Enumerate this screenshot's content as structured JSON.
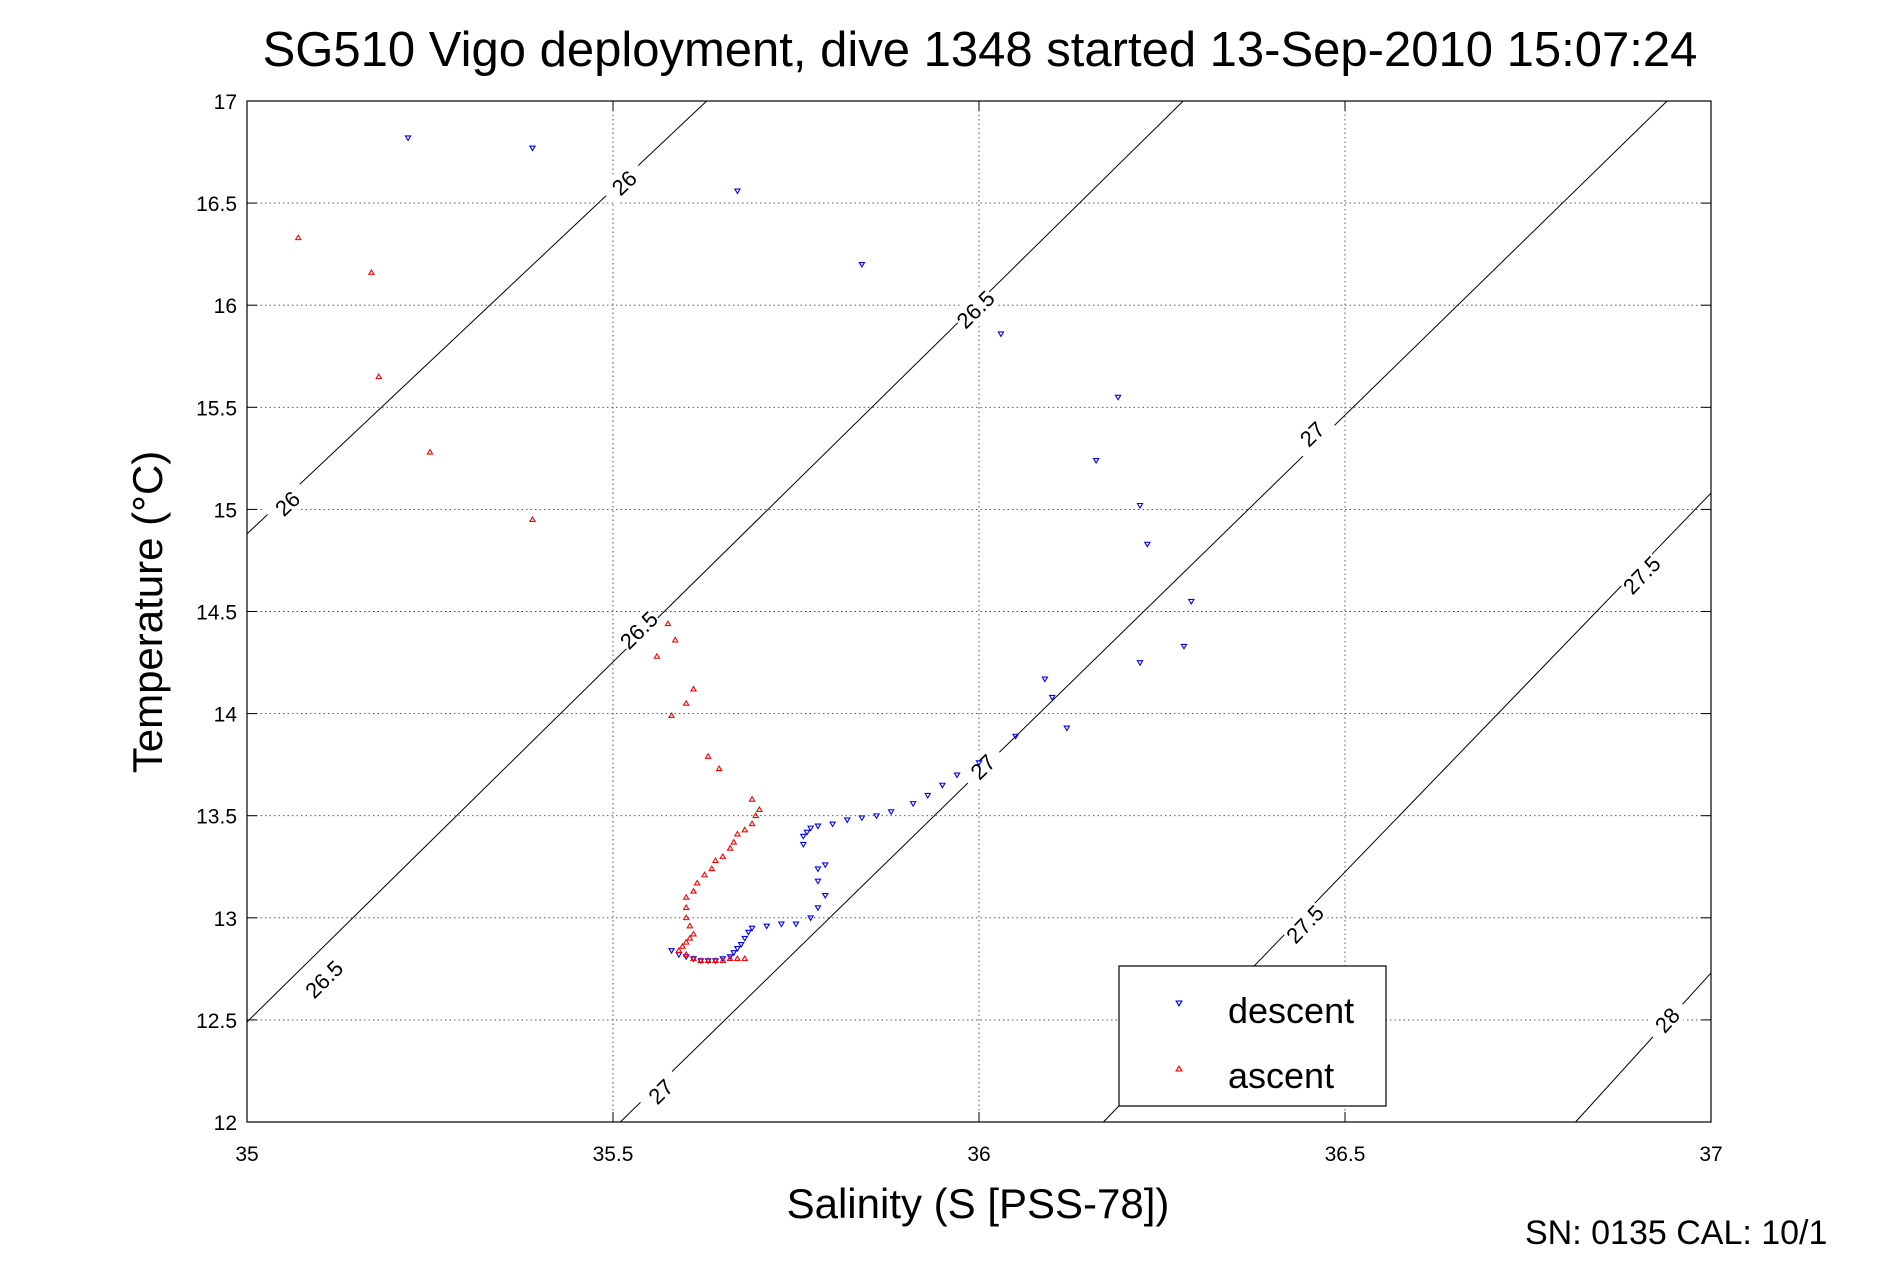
{
  "chart_data": {
    "type": "scatter",
    "title": "SG510 Vigo deployment, dive 1348 started 13-Sep-2010 15:07:24",
    "xlabel": "Salinity (S [PSS-78])",
    "ylabel": "Temperature (°C)",
    "xlim": [
      35,
      37
    ],
    "ylim": [
      12,
      17
    ],
    "xticks": [
      "35",
      "35.5",
      "36",
      "36.5",
      "37"
    ],
    "yticks": [
      "12",
      "12.5",
      "13",
      "13.5",
      "14",
      "14.5",
      "15",
      "15.5",
      "16",
      "16.5",
      "17"
    ],
    "grid": true,
    "legend_position": "bottom-right",
    "footer": "SN: 0135  CAL: 10/1",
    "series": [
      {
        "name": "descent",
        "color": "#0000ff",
        "marker": "triangle-down",
        "points": [
          [
            35.22,
            16.82
          ],
          [
            35.39,
            16.77
          ],
          [
            35.67,
            16.56
          ],
          [
            35.84,
            16.2
          ],
          [
            36.03,
            15.86
          ],
          [
            36.19,
            15.55
          ],
          [
            36.16,
            15.24
          ],
          [
            36.22,
            15.02
          ],
          [
            36.23,
            14.83
          ],
          [
            36.29,
            14.55
          ],
          [
            36.22,
            14.25
          ],
          [
            36.28,
            14.33
          ],
          [
            36.09,
            14.17
          ],
          [
            36.1,
            14.08
          ],
          [
            36.12,
            13.93
          ],
          [
            36.05,
            13.89
          ],
          [
            36.0,
            13.76
          ],
          [
            35.97,
            13.7
          ],
          [
            35.95,
            13.65
          ],
          [
            35.93,
            13.6
          ],
          [
            35.91,
            13.56
          ],
          [
            35.88,
            13.52
          ],
          [
            35.86,
            13.5
          ],
          [
            35.84,
            13.49
          ],
          [
            35.82,
            13.48
          ],
          [
            35.8,
            13.46
          ],
          [
            35.78,
            13.45
          ],
          [
            35.77,
            13.44
          ],
          [
            35.765,
            13.42
          ],
          [
            35.76,
            13.4
          ],
          [
            35.76,
            13.36
          ],
          [
            35.78,
            13.24
          ],
          [
            35.79,
            13.26
          ],
          [
            35.78,
            13.18
          ],
          [
            35.79,
            13.11
          ],
          [
            35.78,
            13.05
          ],
          [
            35.77,
            13.0
          ],
          [
            35.75,
            12.97
          ],
          [
            35.73,
            12.97
          ],
          [
            35.71,
            12.96
          ],
          [
            35.69,
            12.95
          ],
          [
            35.685,
            12.93
          ],
          [
            35.68,
            12.9
          ],
          [
            35.675,
            12.87
          ],
          [
            35.67,
            12.85
          ],
          [
            35.665,
            12.83
          ],
          [
            35.66,
            12.81
          ],
          [
            35.65,
            12.8
          ],
          [
            35.64,
            12.79
          ],
          [
            35.63,
            12.79
          ],
          [
            35.62,
            12.79
          ],
          [
            35.61,
            12.8
          ],
          [
            35.6,
            12.81
          ],
          [
            35.59,
            12.82
          ],
          [
            35.58,
            12.84
          ]
        ]
      },
      {
        "name": "ascent",
        "color": "#ff0000",
        "marker": "triangle-up",
        "points": [
          [
            35.07,
            16.33
          ],
          [
            35.17,
            16.16
          ],
          [
            35.18,
            15.65
          ],
          [
            35.25,
            15.28
          ],
          [
            35.39,
            14.95
          ],
          [
            35.575,
            14.44
          ],
          [
            35.585,
            14.36
          ],
          [
            35.56,
            14.28
          ],
          [
            35.61,
            14.12
          ],
          [
            35.6,
            14.05
          ],
          [
            35.58,
            13.99
          ],
          [
            35.63,
            13.79
          ],
          [
            35.645,
            13.73
          ],
          [
            35.69,
            13.58
          ],
          [
            35.7,
            13.53
          ],
          [
            35.695,
            13.5
          ],
          [
            35.69,
            13.46
          ],
          [
            35.68,
            13.43
          ],
          [
            35.67,
            13.41
          ],
          [
            35.665,
            13.37
          ],
          [
            35.66,
            13.34
          ],
          [
            35.65,
            13.3
          ],
          [
            35.64,
            13.28
          ],
          [
            35.635,
            13.24
          ],
          [
            35.625,
            13.21
          ],
          [
            35.615,
            13.17
          ],
          [
            35.61,
            13.13
          ],
          [
            35.6,
            13.1
          ],
          [
            35.6,
            13.05
          ],
          [
            35.6,
            13.0
          ],
          [
            35.605,
            12.96
          ],
          [
            35.61,
            12.92
          ],
          [
            35.605,
            12.9
          ],
          [
            35.6,
            12.88
          ],
          [
            35.595,
            12.86
          ],
          [
            35.59,
            12.84
          ],
          [
            35.6,
            12.82
          ],
          [
            35.61,
            12.8
          ],
          [
            35.62,
            12.79
          ],
          [
            35.63,
            12.79
          ],
          [
            35.64,
            12.79
          ],
          [
            35.65,
            12.79
          ],
          [
            35.66,
            12.8
          ],
          [
            35.67,
            12.8
          ],
          [
            35.68,
            12.8
          ]
        ]
      }
    ],
    "contours": [
      {
        "label": "26",
        "points": [
          [
            35.0,
            14.88
          ],
          [
            35.628,
            17.0
          ]
        ],
        "labels_at": [
          [
            35.055,
            15.03
          ],
          [
            35.515,
            16.6
          ]
        ]
      },
      {
        "label": "26.5",
        "points": [
          [
            35.0,
            12.49
          ],
          [
            36.279,
            17.0
          ]
        ],
        "labels_at": [
          [
            35.105,
            12.7
          ],
          [
            35.535,
            14.41
          ],
          [
            35.995,
            15.98
          ]
        ]
      },
      {
        "label": "27",
        "points": [
          [
            35.51,
            12.0
          ],
          [
            36.94,
            17.0
          ]
        ],
        "labels_at": [
          [
            35.565,
            12.15
          ],
          [
            36.005,
            13.74
          ],
          [
            36.455,
            15.37
          ]
        ]
      },
      {
        "label": "27.5",
        "points": [
          [
            36.17,
            12.0
          ],
          [
            37.0,
            15.08
          ]
        ],
        "labels_at": [
          [
            36.445,
            12.97
          ],
          [
            36.905,
            14.68
          ]
        ]
      },
      {
        "label": "28",
        "points": [
          [
            36.815,
            12.0
          ],
          [
            37.0,
            12.73
          ]
        ],
        "labels_at": [
          [
            36.94,
            12.5
          ]
        ]
      }
    ]
  }
}
